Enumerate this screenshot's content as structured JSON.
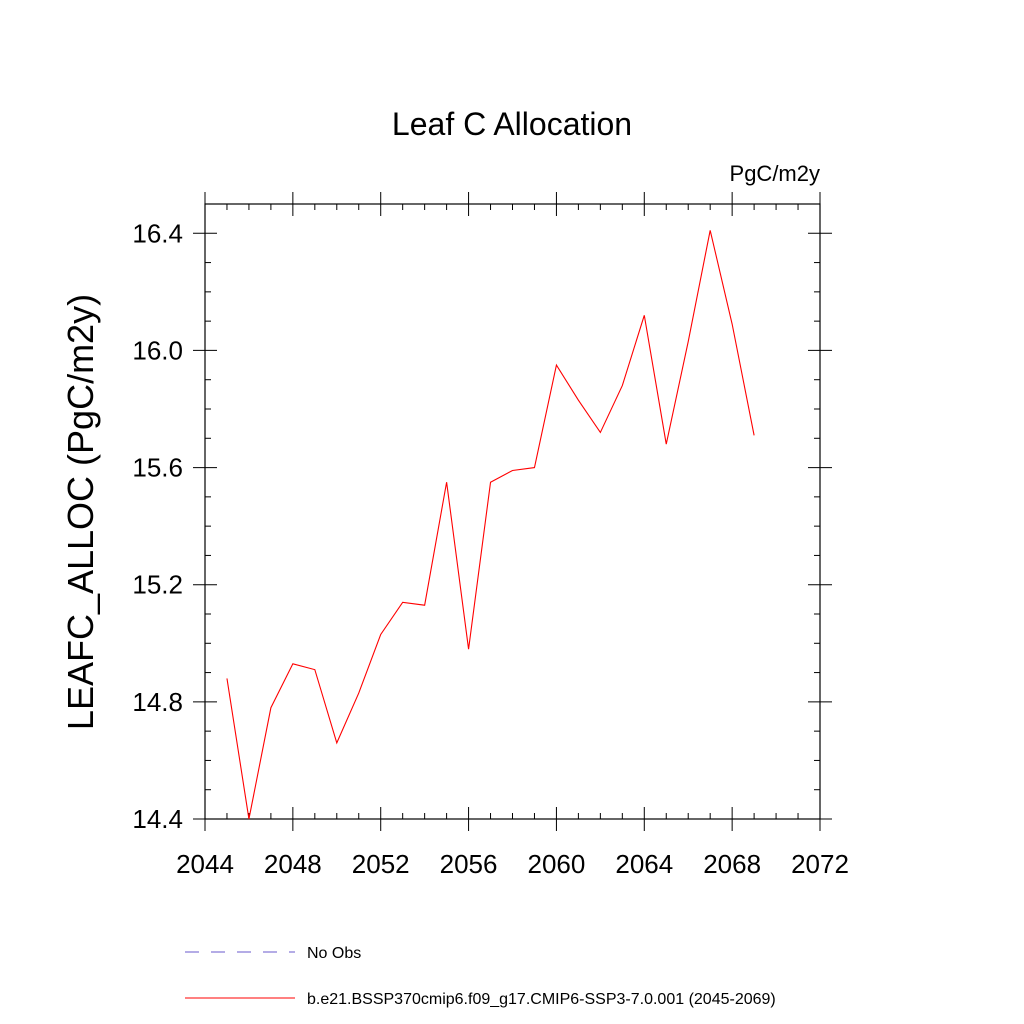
{
  "chart_data": {
    "type": "line",
    "title": "Leaf C Allocation",
    "units_label": "PgC/m2y",
    "ylabel": "LEAFC_ALLOC  (PgC/m2y)",
    "xlabel": "",
    "xlim": [
      2044,
      2072
    ],
    "ylim": [
      14.4,
      16.5
    ],
    "x_ticks": [
      2044,
      2048,
      2052,
      2056,
      2060,
      2064,
      2068,
      2072
    ],
    "x_tick_labels": [
      "2044",
      "2048",
      "2052",
      "2056",
      "2060",
      "2064",
      "2068",
      "2072"
    ],
    "y_ticks": [
      14.4,
      14.8,
      15.2,
      15.6,
      16.0,
      16.4
    ],
    "y_tick_labels": [
      "14.4",
      "14.8",
      "15.2",
      "15.6",
      "16.0",
      "16.4"
    ],
    "x_minor_step": 1,
    "y_minor_step": 0.1,
    "grid": false,
    "series": [
      {
        "name": "b.e21.BSSP370cmip6.f09_g17.CMIP6-SSP3-7.0.001 (2045-2069)",
        "color": "#ff0000",
        "dash": "solid",
        "x": [
          2045,
          2046,
          2047,
          2048,
          2049,
          2050,
          2051,
          2052,
          2053,
          2054,
          2055,
          2056,
          2057,
          2058,
          2059,
          2060,
          2061,
          2062,
          2063,
          2064,
          2065,
          2066,
          2067,
          2068,
          2069
        ],
        "y": [
          14.88,
          14.4,
          14.78,
          14.93,
          14.91,
          14.66,
          14.83,
          15.03,
          15.14,
          15.13,
          15.55,
          14.98,
          15.55,
          15.59,
          15.6,
          15.95,
          15.83,
          15.72,
          15.88,
          16.12,
          15.68,
          16.03,
          16.41,
          16.09,
          15.71
        ]
      }
    ],
    "legend": {
      "placement": "bottom",
      "entries": [
        {
          "label": "No Obs",
          "color": "#6a5acd",
          "dash": "dashed"
        },
        {
          "label": "b.e21.BSSP370cmip6.f09_g17.CMIP6-SSP3-7.0.001 (2045-2069)",
          "color": "#ff0000",
          "dash": "solid"
        }
      ]
    }
  }
}
